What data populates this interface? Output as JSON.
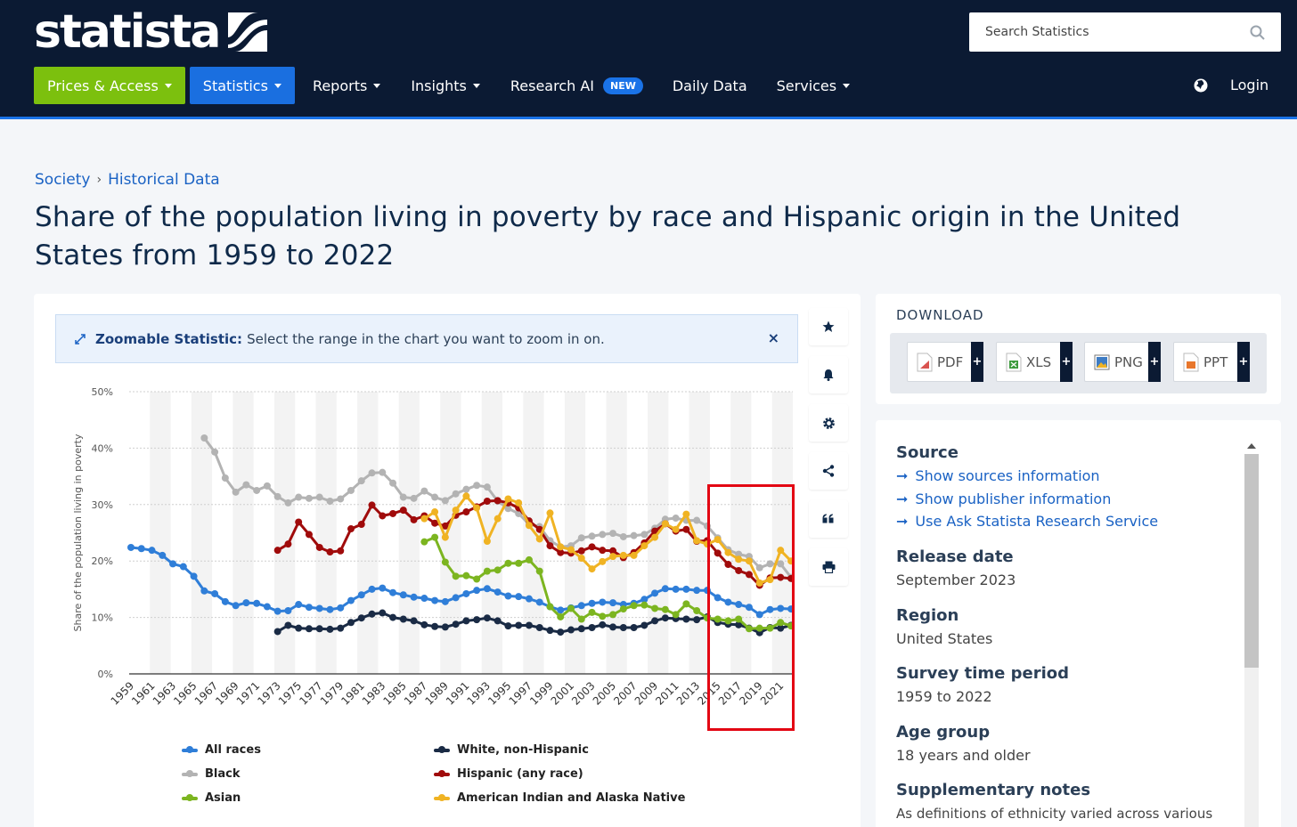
{
  "header": {
    "logo_text": "statista",
    "search_placeholder": "Search Statistics",
    "nav": {
      "prices_access": "Prices & Access",
      "statistics": "Statistics",
      "reports": "Reports",
      "insights": "Insights",
      "research_ai": "Research AI",
      "new_badge": "NEW",
      "daily_data": "Daily Data",
      "services": "Services",
      "login": "Login"
    }
  },
  "breadcrumb": {
    "item1": "Society",
    "separator": "›",
    "item2": "Historical Data"
  },
  "page_title": "Share of the population living in poverty by race and Hispanic origin in the United States from 1959 to 2022",
  "zoom_banner": {
    "label": "Zoomable Statistic:",
    "text": "Select the range in the chart you want to zoom in on.",
    "close": "×"
  },
  "download": {
    "title": "DOWNLOAD",
    "buttons": [
      {
        "label": "PDF",
        "color": "#d9534f"
      },
      {
        "label": "XLS",
        "color": "#3c9a3c"
      },
      {
        "label": "PNG",
        "color": "#3e7cc4"
      },
      {
        "label": "PPT",
        "color": "#e8762b"
      }
    ],
    "plus": "+"
  },
  "info": {
    "source_h": "Source",
    "links": [
      "Show sources information",
      "Show publisher information",
      "Use Ask Statista Research Service"
    ],
    "release_h": "Release date",
    "release_v": "September 2023",
    "region_h": "Region",
    "region_v": "United States",
    "survey_h": "Survey time period",
    "survey_v": "1959 to 2022",
    "age_h": "Age group",
    "age_v": "18 years and older",
    "notes_h": "Supplementary notes",
    "notes_v": "As definitions of ethnicity varied across various"
  },
  "chart_data": {
    "type": "line",
    "ylabel": "Share of the population living in poverty",
    "ylim": [
      0,
      50
    ],
    "yticks": [
      "0%",
      "10%",
      "20%",
      "30%",
      "40%",
      "50%"
    ],
    "xticks": [
      "1959",
      "1961",
      "1963",
      "1965",
      "1967",
      "1969",
      "1971",
      "1973",
      "1975",
      "1977",
      "1979",
      "1981",
      "1983",
      "1985",
      "1987",
      "1989",
      "1991",
      "1993",
      "1995",
      "1997",
      "1999",
      "2001",
      "2003",
      "2005",
      "2007",
      "2009",
      "2011",
      "2013",
      "2015",
      "2017",
      "2019",
      "2021"
    ],
    "grid": true,
    "series": [
      {
        "name": "All races",
        "color": "#2f7ed8",
        "x": [
          1959,
          1960,
          1961,
          1962,
          1963,
          1964,
          1965,
          1966,
          1967,
          1968,
          1969,
          1970,
          1971,
          1972,
          1973,
          1974,
          1975,
          1976,
          1977,
          1978,
          1979,
          1980,
          1981,
          1982,
          1983,
          1984,
          1985,
          1986,
          1987,
          1988,
          1989,
          1990,
          1991,
          1992,
          1993,
          1994,
          1995,
          1996,
          1997,
          1998,
          1999,
          2000,
          2001,
          2002,
          2003,
          2004,
          2005,
          2006,
          2007,
          2008,
          2009,
          2010,
          2011,
          2012,
          2013,
          2014,
          2015,
          2016,
          2017,
          2018,
          2019,
          2020,
          2021,
          2022
        ],
        "values": [
          22.4,
          22.2,
          21.9,
          21.0,
          19.5,
          19.0,
          17.3,
          14.7,
          14.2,
          12.8,
          12.1,
          12.6,
          12.5,
          11.9,
          11.1,
          11.2,
          12.3,
          11.8,
          11.6,
          11.4,
          11.7,
          13.0,
          14.0,
          15.0,
          15.2,
          14.4,
          14.0,
          13.6,
          13.4,
          13.0,
          12.8,
          13.5,
          14.2,
          14.8,
          15.1,
          14.5,
          13.8,
          13.7,
          13.3,
          12.7,
          11.9,
          11.3,
          11.7,
          12.1,
          12.5,
          12.7,
          12.6,
          12.3,
          12.5,
          13.2,
          14.3,
          15.1,
          15.0,
          15.0,
          14.8,
          14.8,
          13.5,
          12.7,
          12.3,
          11.8,
          10.5,
          11.4,
          11.6,
          11.5
        ]
      },
      {
        "name": "White, non-Hispanic",
        "color": "#1a2b45",
        "x": [
          1973,
          1974,
          1975,
          1976,
          1977,
          1978,
          1979,
          1980,
          1981,
          1982,
          1983,
          1984,
          1985,
          1986,
          1987,
          1988,
          1989,
          1990,
          1991,
          1992,
          1993,
          1994,
          1995,
          1996,
          1997,
          1998,
          1999,
          2000,
          2001,
          2002,
          2003,
          2004,
          2005,
          2006,
          2007,
          2008,
          2009,
          2010,
          2011,
          2012,
          2013,
          2014,
          2015,
          2016,
          2017,
          2018,
          2019,
          2020,
          2021,
          2022
        ],
        "values": [
          7.5,
          8.6,
          8.1,
          8.0,
          8.0,
          7.9,
          8.1,
          9.1,
          9.9,
          10.6,
          10.8,
          10.0,
          9.7,
          9.4,
          8.7,
          8.4,
          8.3,
          8.8,
          9.4,
          9.6,
          9.9,
          9.4,
          8.5,
          8.6,
          8.6,
          8.2,
          7.7,
          7.4,
          7.8,
          8.0,
          8.2,
          8.7,
          8.3,
          8.2,
          8.2,
          8.6,
          9.4,
          9.9,
          9.8,
          9.7,
          9.6,
          10.1,
          9.1,
          8.8,
          8.7,
          8.1,
          7.3,
          8.2,
          8.1,
          8.6
        ]
      },
      {
        "name": "Black",
        "color": "#b3b3b3",
        "x": [
          1966,
          1967,
          1968,
          1969,
          1970,
          1971,
          1972,
          1973,
          1974,
          1975,
          1976,
          1977,
          1978,
          1979,
          1980,
          1981,
          1982,
          1983,
          1984,
          1985,
          1986,
          1987,
          1988,
          1989,
          1990,
          1991,
          1992,
          1993,
          1994,
          1995,
          1996,
          1997,
          1998,
          1999,
          2000,
          2001,
          2002,
          2003,
          2004,
          2005,
          2006,
          2007,
          2008,
          2009,
          2010,
          2011,
          2012,
          2013,
          2014,
          2015,
          2016,
          2017,
          2018,
          2019,
          2020,
          2021,
          2022
        ],
        "values": [
          41.8,
          39.3,
          34.7,
          32.2,
          33.5,
          32.5,
          33.3,
          31.4,
          30.3,
          31.3,
          31.1,
          31.3,
          30.6,
          31.0,
          32.5,
          34.2,
          35.6,
          35.7,
          33.8,
          31.3,
          31.1,
          32.4,
          31.3,
          30.7,
          31.9,
          32.7,
          33.4,
          33.1,
          30.6,
          29.3,
          28.4,
          26.5,
          26.1,
          23.6,
          22.5,
          22.7,
          24.1,
          24.4,
          24.7,
          24.9,
          24.3,
          24.5,
          24.7,
          25.8,
          27.4,
          27.6,
          27.2,
          27.2,
          26.2,
          24.1,
          22.0,
          21.2,
          20.8,
          18.8,
          19.5,
          19.5,
          17.1
        ]
      },
      {
        "name": "Hispanic (any race)",
        "color": "#a00b0b",
        "x": [
          1973,
          1974,
          1975,
          1976,
          1977,
          1978,
          1979,
          1980,
          1981,
          1982,
          1983,
          1984,
          1985,
          1986,
          1987,
          1988,
          1989,
          1990,
          1991,
          1992,
          1993,
          1994,
          1995,
          1996,
          1997,
          1998,
          1999,
          2000,
          2001,
          2002,
          2003,
          2004,
          2005,
          2006,
          2007,
          2008,
          2009,
          2010,
          2011,
          2012,
          2013,
          2014,
          2015,
          2016,
          2017,
          2018,
          2019,
          2020,
          2021,
          2022
        ],
        "values": [
          21.9,
          23.0,
          26.9,
          24.7,
          22.4,
          21.6,
          21.8,
          25.7,
          26.5,
          29.9,
          28.0,
          28.4,
          29.0,
          27.3,
          28.0,
          26.7,
          26.2,
          28.1,
          28.7,
          29.6,
          30.6,
          30.7,
          30.3,
          29.4,
          27.1,
          25.6,
          22.7,
          21.5,
          21.4,
          21.8,
          22.5,
          21.9,
          21.8,
          20.6,
          21.5,
          23.2,
          25.3,
          26.6,
          25.3,
          25.6,
          23.5,
          23.6,
          21.4,
          19.4,
          18.3,
          17.6,
          15.7,
          17.0,
          17.1,
          16.9
        ]
      },
      {
        "name": "Asian",
        "color": "#7cb520",
        "x": [
          1987,
          1988,
          1989,
          1990,
          1991,
          1992,
          1993,
          1994,
          1995,
          1996,
          1997,
          1998,
          1999,
          2000,
          2001,
          2002,
          2003,
          2004,
          2005,
          2006,
          2007,
          2008,
          2009,
          2010,
          2011,
          2012,
          2013,
          2014,
          2015,
          2016,
          2017,
          2018,
          2019,
          2020,
          2021,
          2022
        ],
        "values": [
          23.4,
          24.2,
          19.8,
          17.3,
          17.4,
          16.8,
          18.2,
          18.4,
          19.6,
          19.6,
          20.2,
          18.2,
          11.9,
          10.1,
          11.6,
          9.7,
          10.9,
          10.2,
          10.5,
          11.5,
          12.1,
          12.2,
          11.6,
          11.4,
          10.5,
          12.4,
          11.2,
          9.9,
          9.7,
          9.4,
          9.7,
          8.0,
          8.1,
          8.1,
          9.1,
          8.5
        ]
      },
      {
        "name": "American Indian and Alaska Native",
        "color": "#f0b323",
        "x": [
          1987,
          1988,
          1989,
          1990,
          1991,
          1992,
          1993,
          1994,
          1995,
          1996,
          1997,
          1998,
          1999,
          2000,
          2001,
          2002,
          2003,
          2004,
          2005,
          2006,
          2007,
          2008,
          2009,
          2010,
          2011,
          2012,
          2013,
          2014,
          2015,
          2016,
          2017,
          2018,
          2019,
          2020,
          2021,
          2022
        ],
        "values": [
          27.5,
          28.7,
          24.2,
          29.0,
          31.5,
          29.4,
          23.5,
          27.5,
          31.0,
          30.3,
          26.3,
          23.9,
          28.5,
          22.5,
          22.0,
          20.5,
          18.6,
          19.9,
          20.8,
          21.0,
          21.0,
          22.7,
          24.2,
          26.6,
          25.6,
          28.3,
          23.6,
          23.0,
          23.8,
          21.5,
          20.3,
          20.0,
          16.1,
          16.7,
          21.9,
          20.0
        ]
      }
    ]
  }
}
